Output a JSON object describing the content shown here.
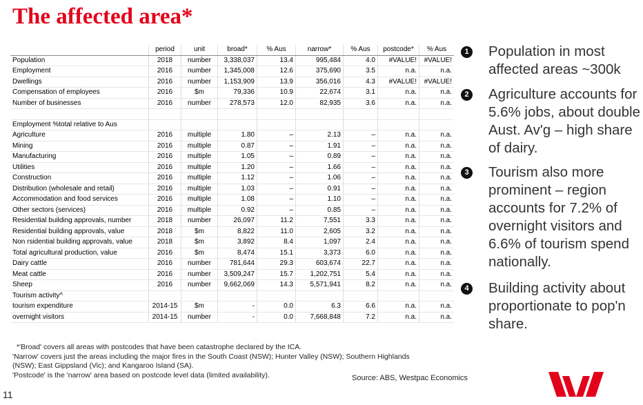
{
  "title": "The affected area*",
  "table": {
    "header": [
      "period",
      "unit",
      "broad*",
      "% Aus",
      "narrow*",
      "% Aus",
      "postcode*",
      "% Aus"
    ],
    "groups": [
      {
        "rows": [
          [
            "Population",
            "2018",
            "number",
            "3,338,037",
            "13.4",
            "995,484",
            "4.0",
            "#VALUE!",
            "#VALUE!"
          ],
          [
            "Employment",
            "2016",
            "number",
            "1,345,008",
            "12.6",
            "375,690",
            "3.5",
            "n.a.",
            "n.a."
          ],
          [
            "Dwellings",
            "2016",
            "number",
            "1,153,909",
            "13.9",
            "356,016",
            "4.3",
            "#VALUE!",
            "#VALUE!"
          ]
        ]
      },
      {
        "rows": [
          [
            "Compensation of employees",
            "2016",
            "$m",
            "79,336",
            "10.9",
            "22,674",
            "3.1",
            "n.a.",
            "n.a."
          ],
          [
            "Number of businesses",
            "2016",
            "number",
            "278,573",
            "12.0",
            "82,935",
            "3.6",
            "n.a.",
            "n.a."
          ]
        ]
      },
      {
        "rows": [
          [
            "Employment %total relative to Aus"
          ],
          [
            "Agriculture",
            "2016",
            "multiple",
            "1.80",
            "–",
            "2.13",
            "–",
            "n.a.",
            "n.a."
          ],
          [
            "Mining",
            "2016",
            "multiple",
            "0.87",
            "–",
            "1.91",
            "–",
            "n.a.",
            "n.a."
          ],
          [
            "Manufacturing",
            "2016",
            "multiple",
            "1.05",
            "–",
            "0.89",
            "–",
            "n.a.",
            "n.a."
          ],
          [
            "Utilities",
            "2016",
            "multiple",
            "1.20",
            "–",
            "1.66",
            "–",
            "n.a.",
            "n.a."
          ],
          [
            "Construction",
            "2016",
            "multiple",
            "1.12",
            "–",
            "1.06",
            "–",
            "n.a.",
            "n.a."
          ],
          [
            "Distribution (wholesale and retail)",
            "2016",
            "multiple",
            "1.03",
            "–",
            "0.91",
            "–",
            "n.a.",
            "n.a."
          ],
          [
            "Accommodation and food services",
            "2016",
            "multiple",
            "1.08",
            "–",
            "1.10",
            "–",
            "n.a.",
            "n.a."
          ],
          [
            "Other sectors (services)",
            "2016",
            "multiple",
            "0.92",
            "–",
            "0.85",
            "–",
            "n.a.",
            "n.a."
          ]
        ]
      },
      {
        "rows": [
          [
            "Residential building approvals, number",
            "2018",
            "number",
            "26,097",
            "11.2",
            "7,551",
            "3.3",
            "n.a.",
            "n.a."
          ],
          [
            "Residential building approvals, value",
            "2018",
            "$m",
            "8,822",
            "11.0",
            "2,605",
            "3.2",
            "n.a.",
            "n.a."
          ],
          [
            "Non rsidential building approvals, value",
            "2018",
            "$m",
            "3,892",
            "8.4",
            "1,097",
            "2.4",
            "n.a.",
            "n.a."
          ]
        ]
      },
      {
        "rows": [
          [
            "Total agricultural production, value",
            "2016",
            "$m",
            "8,474",
            "15.1",
            "3,373",
            "6.0",
            "n.a.",
            "n.a."
          ],
          [
            "Dairy cattle",
            "2016",
            "number",
            "781,644",
            "29.3",
            "603,674",
            "22.7",
            "n.a.",
            "n.a."
          ],
          [
            "Meat cattle",
            "2016",
            "number",
            "3,509,247",
            "15.7",
            "1,202,751",
            "5.4",
            "n.a.",
            "n.a."
          ],
          [
            "Sheep",
            "2016",
            "number",
            "9,662,069",
            "14.3",
            "5,571,941",
            "8.2",
            "n.a.",
            "n.a."
          ]
        ]
      },
      {
        "rows": [
          [
            "Tourism activity^"
          ],
          [
            "tourism expenditure",
            "2014-15",
            "$m",
            "-",
            "0.0",
            "6.3",
            "6.6",
            "n.a.",
            "n.a."
          ],
          [
            "overnight visitors",
            "2014-15",
            "number",
            "-",
            "0.0",
            "7,668,848",
            "7.2",
            "n.a.",
            "n.a."
          ]
        ]
      }
    ]
  },
  "notes": [
    "*'Broad' covers all areas with postcodes that have been catastrophe declared by the ICA.",
    "'Narrow' covers just the areas including the major fires in the South Coast (NSW); Hunter Valley (NSW); Southern Highlands (NSW); East Gippsland (Vic); and Kangaroo Island (SA).",
    "'Postcode' is the 'narrow' area based on postcode level data (limited availability)."
  ],
  "source": "Source: ABS, Westpac Economics",
  "page_number": "11",
  "bullets": [
    {
      "marker": "1",
      "text": "Population in most affected areas ~300k"
    },
    {
      "marker": "2",
      "text": "Agriculture accounts for 5.6% jobs, about double Aust. Av'g – high share of dairy."
    },
    {
      "marker": "3",
      "text": "Tourism also more prominent – region accounts for 7.2% of overnight visitors and 6.6% of tourism spend nationally."
    },
    {
      "marker": "4",
      "text": "Building activity about proportionate to pop'n share."
    }
  ]
}
